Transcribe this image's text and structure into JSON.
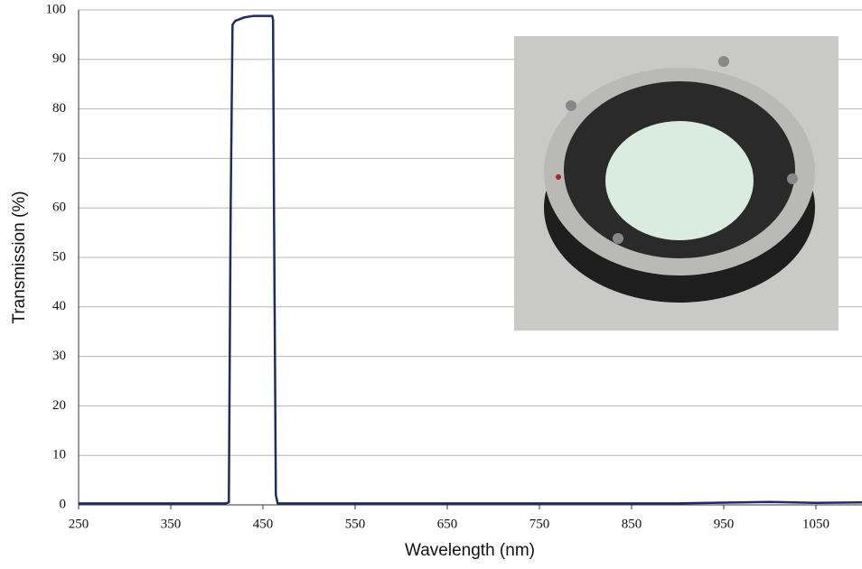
{
  "chart_data": {
    "type": "line",
    "x_label": "Wavelength (nm)",
    "y_label": "Transmission (%)",
    "x": [
      250,
      410,
      413,
      415,
      417,
      420,
      430,
      440,
      450,
      460,
      461,
      462,
      464,
      466,
      700,
      900,
      1000,
      1050,
      1100
    ],
    "series": [
      {
        "name": "Transmission",
        "color": "#1c2b6b",
        "values": [
          0.3,
          0.3,
          0.5,
          60,
          97,
          97.8,
          98.5,
          98.8,
          98.8,
          98.8,
          98,
          60,
          2,
          0.3,
          0.3,
          0.3,
          0.6,
          0.4,
          0.5
        ]
      }
    ],
    "xlim": [
      250,
      1100
    ],
    "xticks": [
      250,
      350,
      450,
      550,
      650,
      750,
      850,
      950,
      1050
    ],
    "ylim": [
      0,
      100
    ],
    "yticks": [
      0,
      10,
      20,
      30,
      40,
      50,
      60,
      70,
      80,
      90,
      100
    ],
    "grid": true
  }
}
